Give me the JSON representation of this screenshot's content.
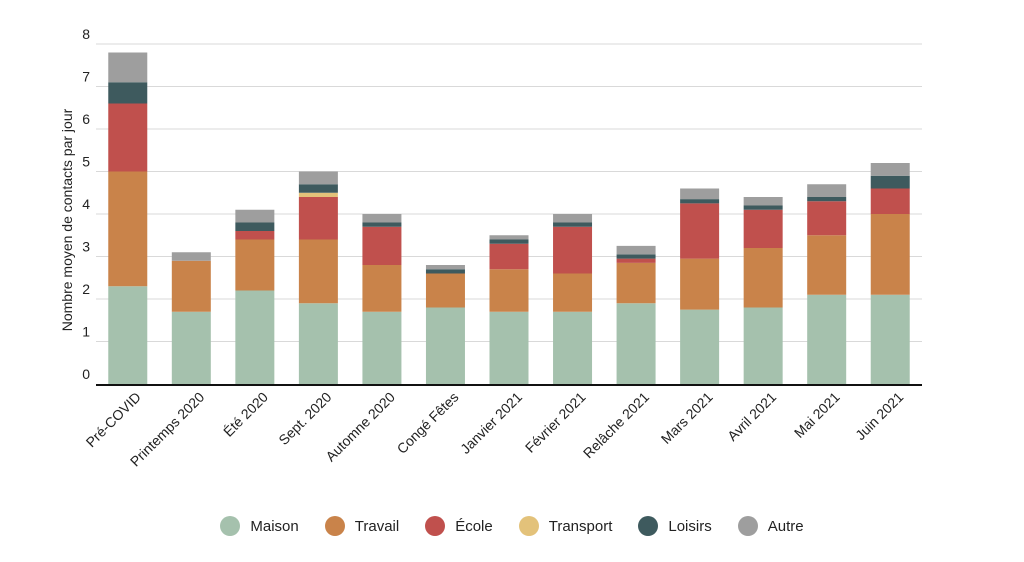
{
  "chart_data": {
    "type": "bar",
    "stacked": true,
    "title": "",
    "xlabel": "",
    "ylabel": "Nombre moyen de contacts par jour",
    "ylim": [
      0,
      8
    ],
    "yticks": [
      0,
      1,
      2,
      3,
      4,
      5,
      6,
      7,
      8
    ],
    "grid": true,
    "legend_position": "bottom",
    "categories": [
      "Pré-COVID",
      "Printemps 2020",
      "Été 2020",
      "Sept. 2020",
      "Automne 2020",
      "Congé Fêtes",
      "Janvier 2021",
      "Février 2021",
      "Relâche 2021",
      "Mars 2021",
      "Avril 2021",
      "Mai  2021",
      "Juin 2021"
    ],
    "series": [
      {
        "name": "Maison",
        "color": "#a5c1ad",
        "values": [
          2.3,
          1.7,
          2.2,
          1.9,
          1.7,
          1.8,
          1.7,
          1.7,
          1.9,
          1.75,
          1.8,
          2.1,
          2.1
        ]
      },
      {
        "name": "Travail",
        "color": "#c9834a",
        "values": [
          2.7,
          1.2,
          1.2,
          1.5,
          1.1,
          0.8,
          1.0,
          0.9,
          0.95,
          1.2,
          1.4,
          1.4,
          1.9
        ]
      },
      {
        "name": "École",
        "color": "#c0504d",
        "values": [
          1.6,
          0.0,
          0.2,
          1.0,
          0.9,
          0.0,
          0.6,
          1.1,
          0.1,
          1.3,
          0.9,
          0.8,
          0.6
        ]
      },
      {
        "name": "Transport",
        "color": "#e3c27a",
        "values": [
          0.0,
          0.0,
          0.0,
          0.1,
          0.0,
          0.0,
          0.0,
          0.0,
          0.0,
          0.0,
          0.0,
          0.0,
          0.0
        ]
      },
      {
        "name": "Loisirs",
        "color": "#3e5a5e",
        "values": [
          0.5,
          0.0,
          0.2,
          0.2,
          0.1,
          0.1,
          0.1,
          0.1,
          0.1,
          0.1,
          0.1,
          0.1,
          0.3
        ]
      },
      {
        "name": "Autre",
        "color": "#9e9e9e",
        "values": [
          0.7,
          0.2,
          0.3,
          0.3,
          0.2,
          0.1,
          0.1,
          0.2,
          0.2,
          0.25,
          0.2,
          0.3,
          0.3
        ]
      }
    ]
  }
}
